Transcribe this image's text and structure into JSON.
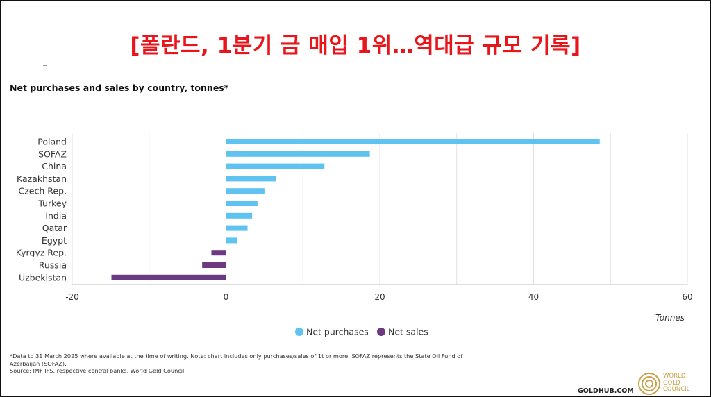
{
  "headline": "[폴란드, 1분기 금 매입 1위…역대급 규모 기록]",
  "chart_data": {
    "type": "bar",
    "orientation": "horizontal",
    "title": "Net purchases and sales by country, tonnes*",
    "xlabel": "Tonnes",
    "xlim": [
      -20,
      60
    ],
    "x_ticks": [
      -20,
      0,
      20,
      40,
      60
    ],
    "grid": true,
    "legend_placement": "bottom",
    "categories": [
      "Poland",
      "SOFAZ",
      "China",
      "Kazakhstan",
      "Czech Rep.",
      "Turkey",
      "India",
      "Qatar",
      "Egypt",
      "Kyrgyz Rep.",
      "Russia",
      "Uzbekistan"
    ],
    "values": [
      48.6,
      18.7,
      12.8,
      6.5,
      5.0,
      4.1,
      3.4,
      2.8,
      1.4,
      -1.9,
      -3.1,
      -14.9
    ],
    "series": [
      {
        "name": "Net purchases",
        "color": "#5ec3f0"
      },
      {
        "name": "Net sales",
        "color": "#6d3a82"
      }
    ]
  },
  "footnote": {
    "line1": "*Data to 31 March 2025 where available at the time of writing. Note: chart includes only purchases/sales of 1t or more. SOFAZ represents the State Oil Fund of",
    "line2": "Azerbaijan (SOFAZ).",
    "line3": "Source: IMF IFS, respective central banks, World Gold Council"
  },
  "branding": {
    "site": "GOLDHUB.COM",
    "logo_line1": "WORLD",
    "logo_line2": "GOLD",
    "logo_line3": "COUNCIL",
    "logo_color": "#c9a24a"
  }
}
